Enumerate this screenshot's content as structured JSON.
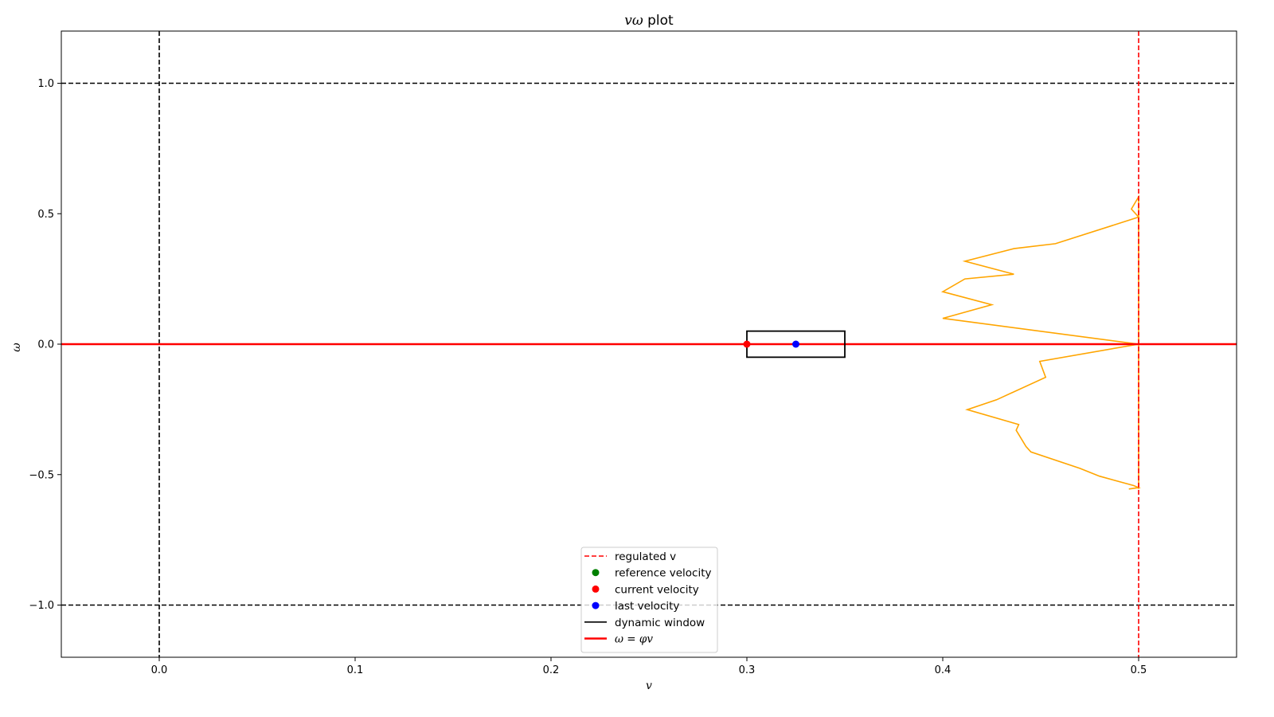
{
  "chart_data": {
    "type": "line",
    "title_prefix": "vω",
    "title_suffix": " plot",
    "xlabel": "v",
    "ylabel": "ω",
    "xlim": [
      -0.05,
      0.55
    ],
    "ylim": [
      -1.2,
      1.2
    ],
    "xticks": [
      0.0,
      0.1,
      0.2,
      0.3,
      0.4,
      0.5
    ],
    "xtick_labels": [
      "0.0",
      "0.1",
      "0.2",
      "0.3",
      "0.4",
      "0.5"
    ],
    "yticks": [
      -1.0,
      -0.5,
      0.0,
      0.5,
      1.0
    ],
    "ytick_labels": [
      "−1.0",
      "−0.5",
      "0.0",
      "0.5",
      "1.0"
    ],
    "grid": false,
    "legend_position": "lower-center",
    "reference_lines": {
      "vertical_black_dashed_v": 0.0,
      "horizontal_black_dashed_w": [
        1.0,
        -1.0
      ],
      "regulated_v": 0.5
    },
    "dynamic_window": {
      "v_min": 0.3,
      "v_max": 0.35,
      "w_min": -0.05,
      "w_max": 0.05
    },
    "current_velocity": {
      "v": 0.3,
      "w": 0.0
    },
    "last_velocity": {
      "v": 0.325,
      "w": 0.0
    },
    "phi_line": {
      "slope": 0.0
    },
    "profile_curve": {
      "v": [
        0.495,
        0.5,
        0.5,
        0.4975,
        0.48,
        0.47,
        0.445,
        0.4425,
        0.4375,
        0.4388,
        0.4125,
        0.4275,
        0.4525,
        0.4495,
        0.5,
        0.4,
        0.425,
        0.4,
        0.4113,
        0.4363,
        0.4113,
        0.4363,
        0.4575,
        0.5,
        0.4963,
        0.5,
        0.5,
        0.5,
        0.5
      ],
      "w": [
        -0.555,
        -0.55,
        -0.55,
        -0.542,
        -0.506,
        -0.476,
        -0.413,
        -0.392,
        -0.33,
        -0.308,
        -0.251,
        -0.213,
        -0.127,
        -0.066,
        0.0,
        0.099,
        0.151,
        0.201,
        0.25,
        0.268,
        0.318,
        0.366,
        0.385,
        0.487,
        0.518,
        0.565,
        0.0,
        -0.55,
        -0.555
      ]
    },
    "colors": {
      "regulated": "#ff0000",
      "reference": "#008000",
      "current": "#ff0000",
      "last": "#0000ff",
      "window": "#000000",
      "phi": "#ff0000",
      "profile": "#ffa500"
    },
    "legend": [
      {
        "label": "regulated v",
        "kind": "dashed-line",
        "color": "#ff0000"
      },
      {
        "label": "reference velocity",
        "kind": "dot",
        "color": "#008000"
      },
      {
        "label": "current velocity",
        "kind": "dot",
        "color": "#ff0000"
      },
      {
        "label": "last velocity",
        "kind": "dot",
        "color": "#0000ff"
      },
      {
        "label": "dynamic window",
        "kind": "line",
        "color": "#000000"
      },
      {
        "label": "ω = φv",
        "kind": "thick-line",
        "color": "#ff0000"
      }
    ]
  }
}
